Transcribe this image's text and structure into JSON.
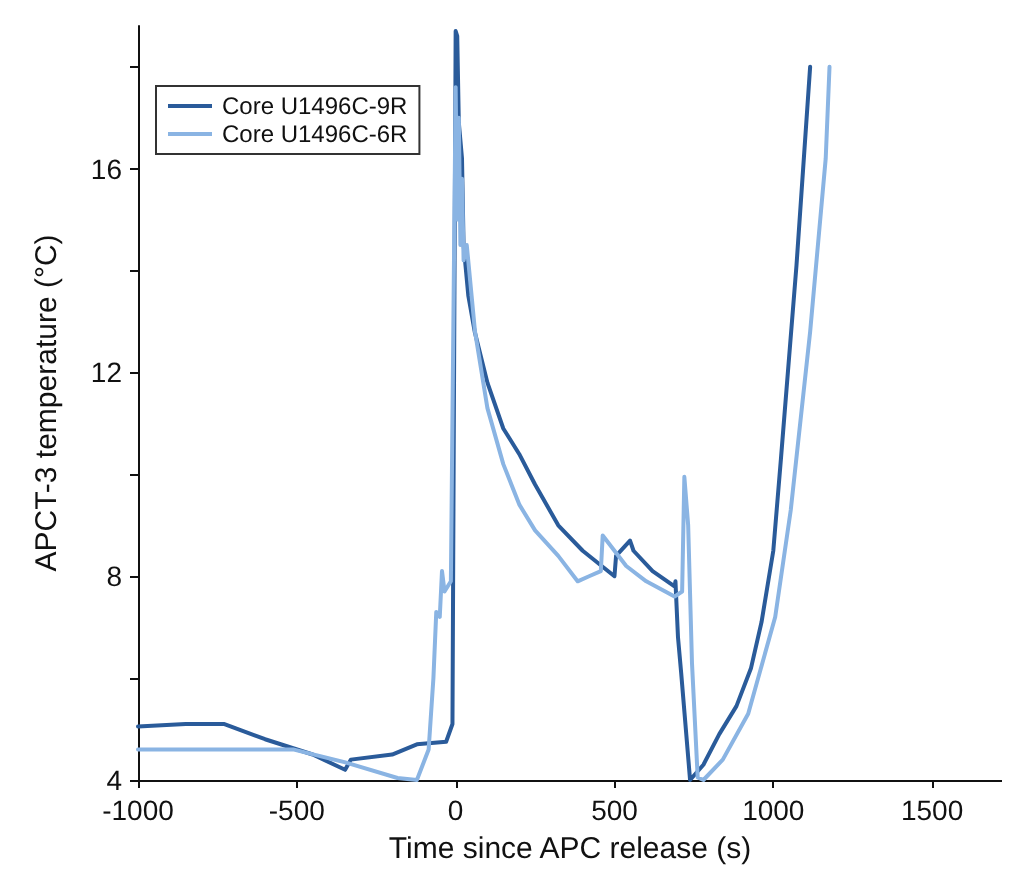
{
  "chart_data": {
    "type": "line",
    "xlabel": "Time since APC release (s)",
    "ylabel": "APCT-3 temperature (°C)",
    "xlim": [
      -1000,
      1720
    ],
    "xticks": [
      -1000,
      -500,
      0,
      500,
      1000,
      1500
    ],
    "ylim": [
      4,
      18.8
    ],
    "yticks": [
      4,
      {
        "value": 6,
        "label": null
      },
      8,
      {
        "value": 10,
        "label": null
      },
      12,
      {
        "value": 14,
        "label": null
      },
      16,
      {
        "value": 18,
        "label": null
      }
    ],
    "grid": false,
    "legend": "top left",
    "marker": "none",
    "line_style": "solid",
    "series": [
      {
        "name": "Core U1496C-9R",
        "color": "#2a5b9a",
        "x": [
          -1000,
          -850,
          -730,
          -600,
          -450,
          -348,
          -330,
          -200,
          -122,
          -30,
          -10,
          0,
          5,
          10,
          20,
          25,
          40,
          60,
          100,
          150,
          200,
          250,
          323,
          400,
          500,
          505,
          549,
          560,
          620,
          689,
          692,
          700,
          710,
          738,
          780,
          830,
          884,
          930,
          963,
          1000,
          1024,
          1073,
          1116
        ],
        "values": [
          5.05,
          5.1,
          5.1,
          4.8,
          4.5,
          4.2,
          4.4,
          4.5,
          4.7,
          4.75,
          5.1,
          18.7,
          18.6,
          16.9,
          16.2,
          14.5,
          13.5,
          12.8,
          11.8,
          10.9,
          10.4,
          9.8,
          9.0,
          8.5,
          8.0,
          8.4,
          8.7,
          8.5,
          8.1,
          7.8,
          7.9,
          6.8,
          6.1,
          4.0,
          4.3,
          4.9,
          5.45,
          6.2,
          7.1,
          8.5,
          10.3,
          14.1,
          18.0
        ]
      },
      {
        "name": "Core U1496C-6R",
        "color": "#8ab4e3",
        "x": [
          -1000,
          -700,
          -512,
          -350,
          -183,
          -122,
          -85,
          -70,
          -61,
          -50,
          -43,
          -35,
          -15,
          0,
          5,
          10,
          15,
          20,
          25,
          35,
          61,
          100,
          150,
          201,
          250,
          323,
          384,
          420,
          457,
          463,
          537,
          600,
          689,
          713,
          720,
          732,
          744,
          762,
          780,
          841,
          921,
          1006,
          1055,
          1116,
          1165,
          1177
        ],
        "values": [
          4.6,
          4.6,
          4.6,
          4.35,
          4.04,
          4.0,
          4.6,
          6.0,
          7.3,
          7.2,
          8.1,
          7.7,
          7.9,
          17.6,
          15.0,
          17.0,
          14.5,
          15.8,
          14.2,
          14.5,
          12.8,
          11.3,
          10.2,
          9.4,
          8.9,
          8.4,
          7.9,
          8.0,
          8.1,
          8.8,
          8.2,
          7.9,
          7.6,
          7.7,
          9.95,
          9.0,
          6.3,
          4.05,
          4.0,
          4.4,
          5.3,
          7.2,
          9.3,
          12.8,
          16.2,
          18.0
        ]
      }
    ]
  }
}
